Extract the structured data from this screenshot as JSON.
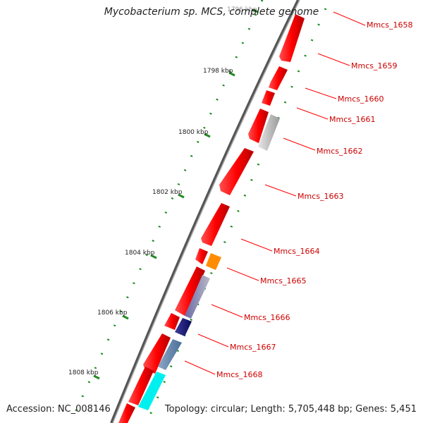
{
  "title": "Mycobacterium sp. MCS, complete genome",
  "footer": {
    "accession": "Accession: NC_008146",
    "topology": "Topology: circular; Length: 5,705,448 bp; Genes: 5,451"
  },
  "ruler": {
    "ticks": [
      {
        "label": "1796 kbp",
        "faded": true
      },
      {
        "label": "1798 kbp"
      },
      {
        "label": "1800 kbp"
      },
      {
        "label": "1802 kbp"
      },
      {
        "label": "1804 kbp"
      },
      {
        "label": "1806 kbp"
      },
      {
        "label": "1808 kbp"
      }
    ]
  },
  "gene_labels": [
    "Mmcs_1658",
    "Mmcs_1659",
    "Mmcs_1660",
    "Mmcs_1661",
    "Mmcs_1662",
    "Mmcs_1663",
    "Mmcs_1664",
    "Mmcs_1665",
    "Mmcs_1666",
    "Mmcs_1667",
    "Mmcs_1668"
  ],
  "colors": {
    "gene_red": "#ff0000",
    "backbone": "#888888",
    "dots": "#228b22",
    "label_text": "#cc0000",
    "leader_line": "#ff0000"
  }
}
